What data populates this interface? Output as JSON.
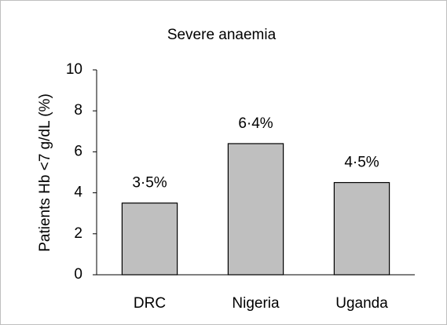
{
  "chart_data": {
    "type": "bar",
    "title": "Severe anaemia",
    "y_label": "Patients  Hb <7 g/dL (%)",
    "categories": [
      "DRC",
      "Nigeria",
      "Uganda"
    ],
    "values": [
      3.5,
      6.4,
      4.5
    ],
    "value_labels": [
      "3·5%",
      "6·4%",
      "4·5%"
    ],
    "color": "#bfbfbf",
    "ylim": [
      0,
      10
    ],
    "yticks": [
      0,
      2,
      4,
      6,
      8,
      10
    ],
    "grid": false
  }
}
